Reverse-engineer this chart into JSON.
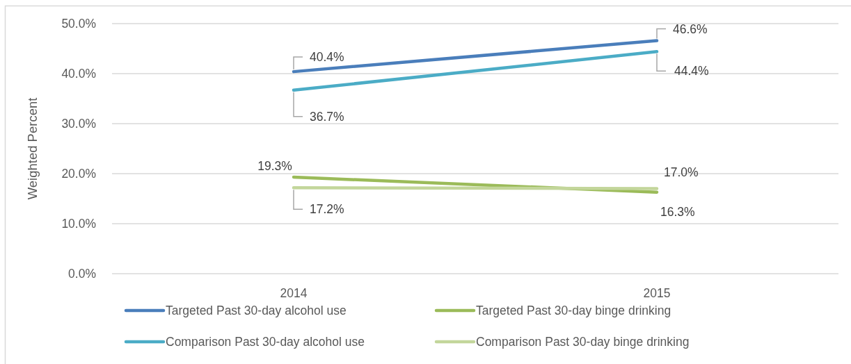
{
  "chart_data": {
    "type": "line",
    "ylabel": "Weighted Percent",
    "categories": [
      "2014",
      "2015"
    ],
    "series": [
      {
        "name": "Targeted Past 30-day alcohol use",
        "color": "#4a7ebb",
        "values": [
          40.4,
          46.6
        ],
        "value_labels": [
          "40.4%",
          "46.6%"
        ]
      },
      {
        "name": "Targeted Past 30-day binge drinking",
        "color": "#9bbb59",
        "values": [
          19.3,
          16.3
        ],
        "value_labels": [
          "19.3%",
          "16.3%"
        ]
      },
      {
        "name": "Comparison Past 30-day alcohol use",
        "color": "#4bacc6",
        "values": [
          36.7,
          44.4
        ],
        "value_labels": [
          "36.7%",
          "44.4%"
        ]
      },
      {
        "name": "Comparison Past 30-day binge drinking",
        "color": "#c3d69b",
        "values": [
          17.2,
          17.0
        ],
        "value_labels": [
          "17.2%",
          "17.0%"
        ]
      }
    ],
    "ylim": [
      0,
      50
    ],
    "yticks": [
      {
        "value": 0,
        "label": "0.0%"
      },
      {
        "value": 10,
        "label": "10.0%"
      },
      {
        "value": 20,
        "label": "20.0%"
      },
      {
        "value": 30,
        "label": "30.0%"
      },
      {
        "value": 40,
        "label": "40.0%"
      },
      {
        "value": 50,
        "label": "50.0%"
      }
    ],
    "grid": "y",
    "legend": "bottom",
    "marker": "none",
    "line_style": "solid"
  }
}
